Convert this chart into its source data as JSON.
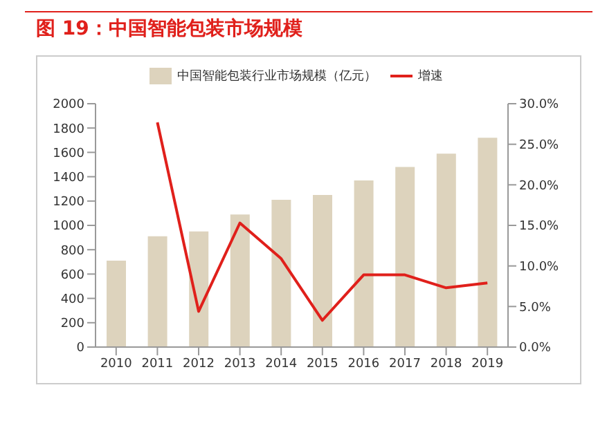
{
  "chart_data": {
    "type": "bar",
    "title": "图 19：中国智能包装市场规模",
    "categories": [
      "2010",
      "2011",
      "2012",
      "2013",
      "2014",
      "2015",
      "2016",
      "2017",
      "2018",
      "2019"
    ],
    "series": [
      {
        "name": "中国智能包装行业市场规模（亿元）",
        "color": "#ddd3bd",
        "values": [
          710,
          910,
          950,
          1090,
          1210,
          1250,
          1370,
          1480,
          1590,
          1720
        ]
      },
      {
        "name": "增速",
        "type": "line",
        "axis": "y2",
        "color": "#e0201b",
        "values": [
          null,
          27.7,
          4.4,
          15.3,
          10.9,
          3.3,
          8.9,
          8.9,
          7.3,
          7.9
        ]
      }
    ],
    "ylim": [
      0,
      2000
    ],
    "yticks": [
      0,
      200,
      400,
      600,
      800,
      1000,
      1200,
      1400,
      1600,
      1800,
      2000
    ],
    "y2lim": [
      0,
      30
    ],
    "y2ticks": [
      {
        "value": 0,
        "label": "0.0%"
      },
      {
        "value": 5,
        "label": "5.0%"
      },
      {
        "value": 10,
        "label": "10.0%"
      },
      {
        "value": 15,
        "label": "15.0%"
      },
      {
        "value": 20,
        "label": "20.0%"
      },
      {
        "value": 25,
        "label": "25.0%"
      },
      {
        "value": 30,
        "label": "30.0%"
      }
    ],
    "legend": "top",
    "grid": false,
    "marker": "none"
  }
}
